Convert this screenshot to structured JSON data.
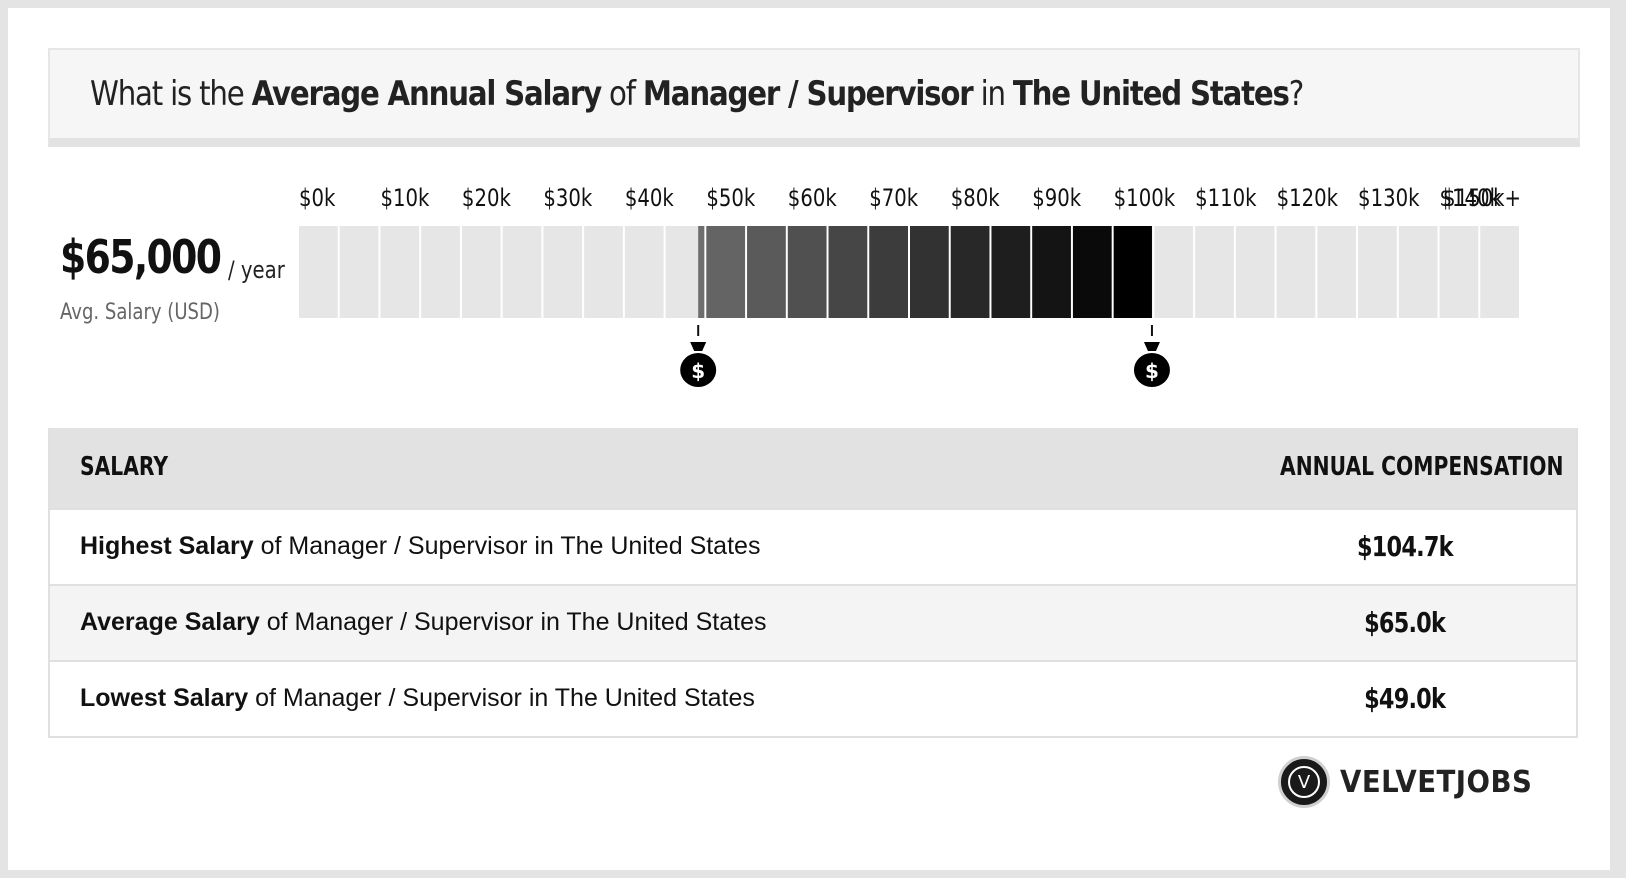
{
  "header": {
    "title_parts": [
      {
        "text": "What is the ",
        "bold": false
      },
      {
        "text": "Average Annual Salary",
        "bold": true
      },
      {
        "text": " of ",
        "bold": false
      },
      {
        "text": "Manager / Supervisor",
        "bold": true
      },
      {
        "text": " in ",
        "bold": false
      },
      {
        "text": "The United States",
        "bold": true
      },
      {
        "text": "?",
        "bold": false
      }
    ]
  },
  "summary": {
    "salary": "$65,000",
    "period": "/ year",
    "label": "Avg. Salary (USD)"
  },
  "chart_data": {
    "type": "range",
    "tick_labels": [
      "$0k",
      "$10k",
      "$20k",
      "$30k",
      "$40k",
      "$50k",
      "$60k",
      "$70k",
      "$80k",
      "$90k",
      "$100k",
      "$110k",
      "$120k",
      "$130k",
      "$140k",
      "$150k+"
    ],
    "x_min": 0,
    "x_max": 150000,
    "range_low": 49000,
    "range_high": 104700,
    "bin_size": 5000,
    "colors": {
      "empty": "#e6e6e6",
      "range_start": "#6e6e6e",
      "range_end": "#000000"
    },
    "markers": [
      "money-bag-icon",
      "money-bag-icon"
    ]
  },
  "table": {
    "col_left": "SALARY",
    "col_right": "ANNUAL COMPENSATION",
    "rows": [
      {
        "bold": "Highest Salary",
        "rest": " of Manager / Supervisor in The United States",
        "value": "$104.7k"
      },
      {
        "bold": "Average Salary",
        "rest": " of Manager / Supervisor in The United States",
        "value": "$65.0k"
      },
      {
        "bold": "Lowest Salary",
        "rest": " of Manager / Supervisor in The United States",
        "value": "$49.0k"
      }
    ]
  },
  "brand": {
    "logo_letter": "V",
    "name": "VELVETJOBS"
  }
}
